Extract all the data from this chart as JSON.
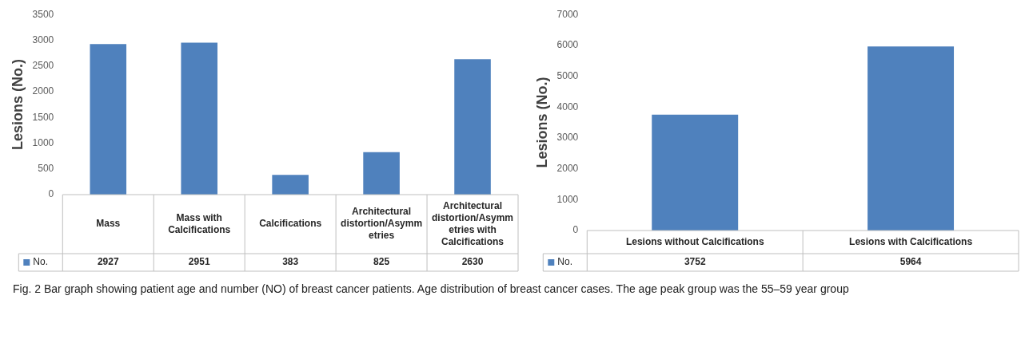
{
  "chart_data": [
    {
      "type": "bar",
      "categories": [
        "Mass",
        "Mass with Calcifications",
        "Calcifications",
        "Architectural distortion/Asymmetries",
        "Architectural distortion/Asymmetries with Calcifications"
      ],
      "series": [
        {
          "name": "No.",
          "color": "#4f81bd",
          "values": [
            2927,
            2951,
            383,
            825,
            2630
          ]
        }
      ],
      "ylabel": "Lesions (No.)",
      "ylim": [
        0,
        3500
      ],
      "yticks": [
        0,
        500,
        1000,
        1500,
        2000,
        2500,
        3000,
        3500
      ],
      "data_labels": true,
      "legend": "bottom",
      "grid": false,
      "annotations": [
        "Fig. 2  Bar graph showing patient age and number (NO) of breast cancer patients. Age distribution of breast cancer cases. The age peak group was the 55–59 year group"
      ]
    },
    {
      "type": "bar",
      "categories": [
        "Lesions without Calcifications",
        "Lesions with Calcifications"
      ],
      "series": [
        {
          "name": "No.",
          "color": "#4f81bd",
          "values": [
            3752,
            5964
          ]
        }
      ],
      "ylabel": "Lesions (No.)",
      "ylim": [
        0,
        7000
      ],
      "yticks": [
        0,
        1000,
        2000,
        3000,
        4000,
        5000,
        6000,
        7000
      ],
      "data_labels": true,
      "legend": "bottom",
      "grid": false
    }
  ]
}
